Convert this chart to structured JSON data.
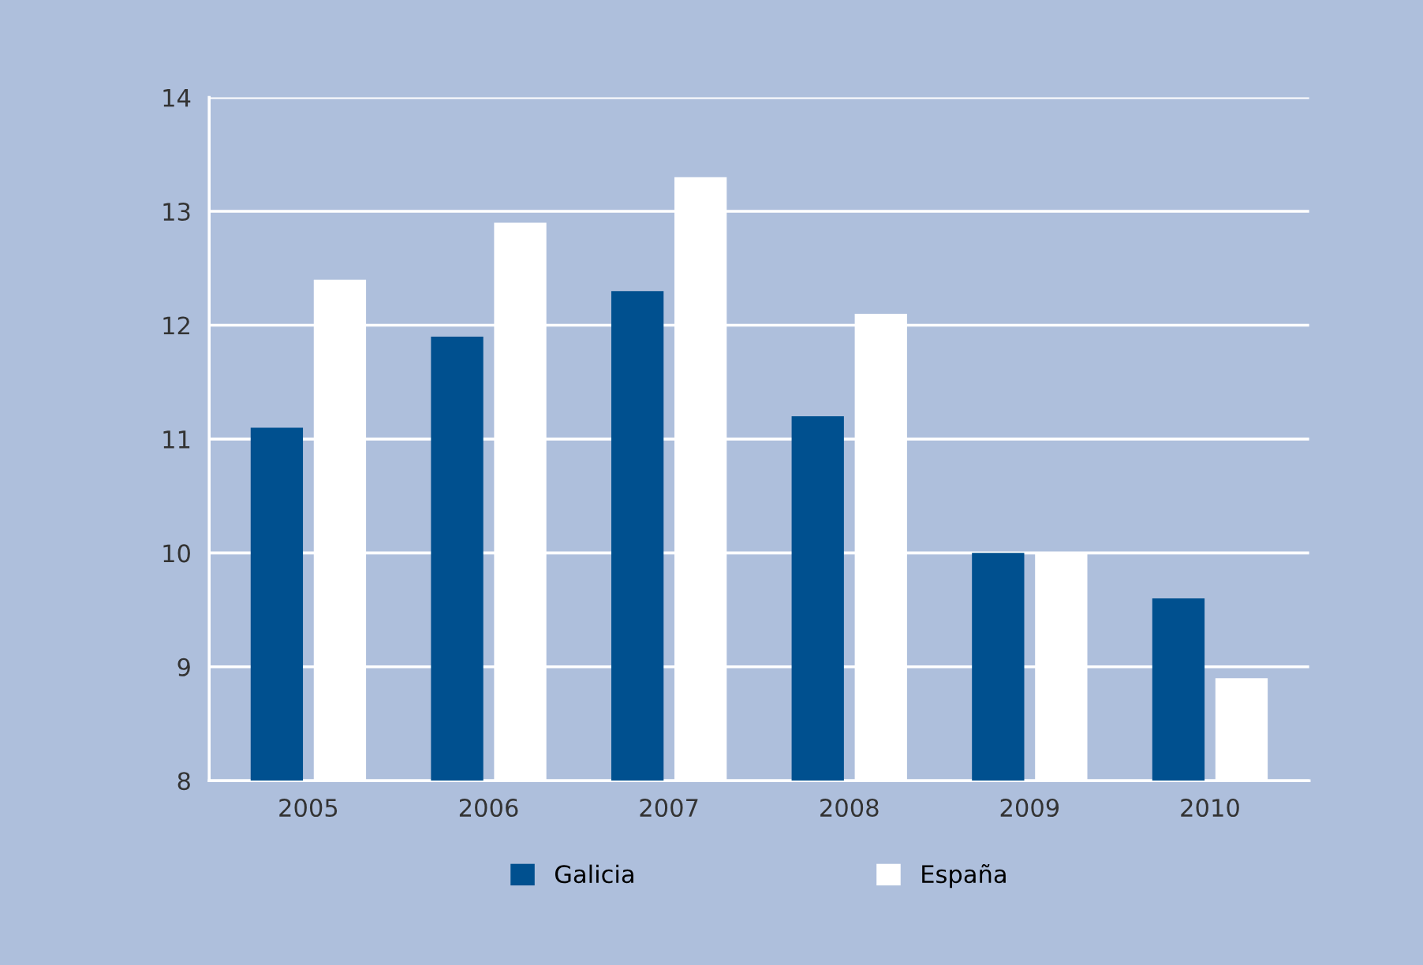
{
  "chart_data": {
    "type": "bar",
    "categories": [
      "2005",
      "2006",
      "2007",
      "2008",
      "2009",
      "2010"
    ],
    "series": [
      {
        "name": "Galicia",
        "color": "#00508f",
        "values": [
          11.1,
          11.9,
          12.3,
          11.2,
          10.0,
          9.6
        ]
      },
      {
        "name": "España",
        "color": "#ffffff",
        "values": [
          12.4,
          12.9,
          13.3,
          12.1,
          10.0,
          8.9
        ]
      }
    ],
    "ylim": [
      8,
      14
    ],
    "yticks": [
      8,
      9,
      10,
      11,
      12,
      13,
      14
    ],
    "grid": "y",
    "legend": "bottom"
  }
}
